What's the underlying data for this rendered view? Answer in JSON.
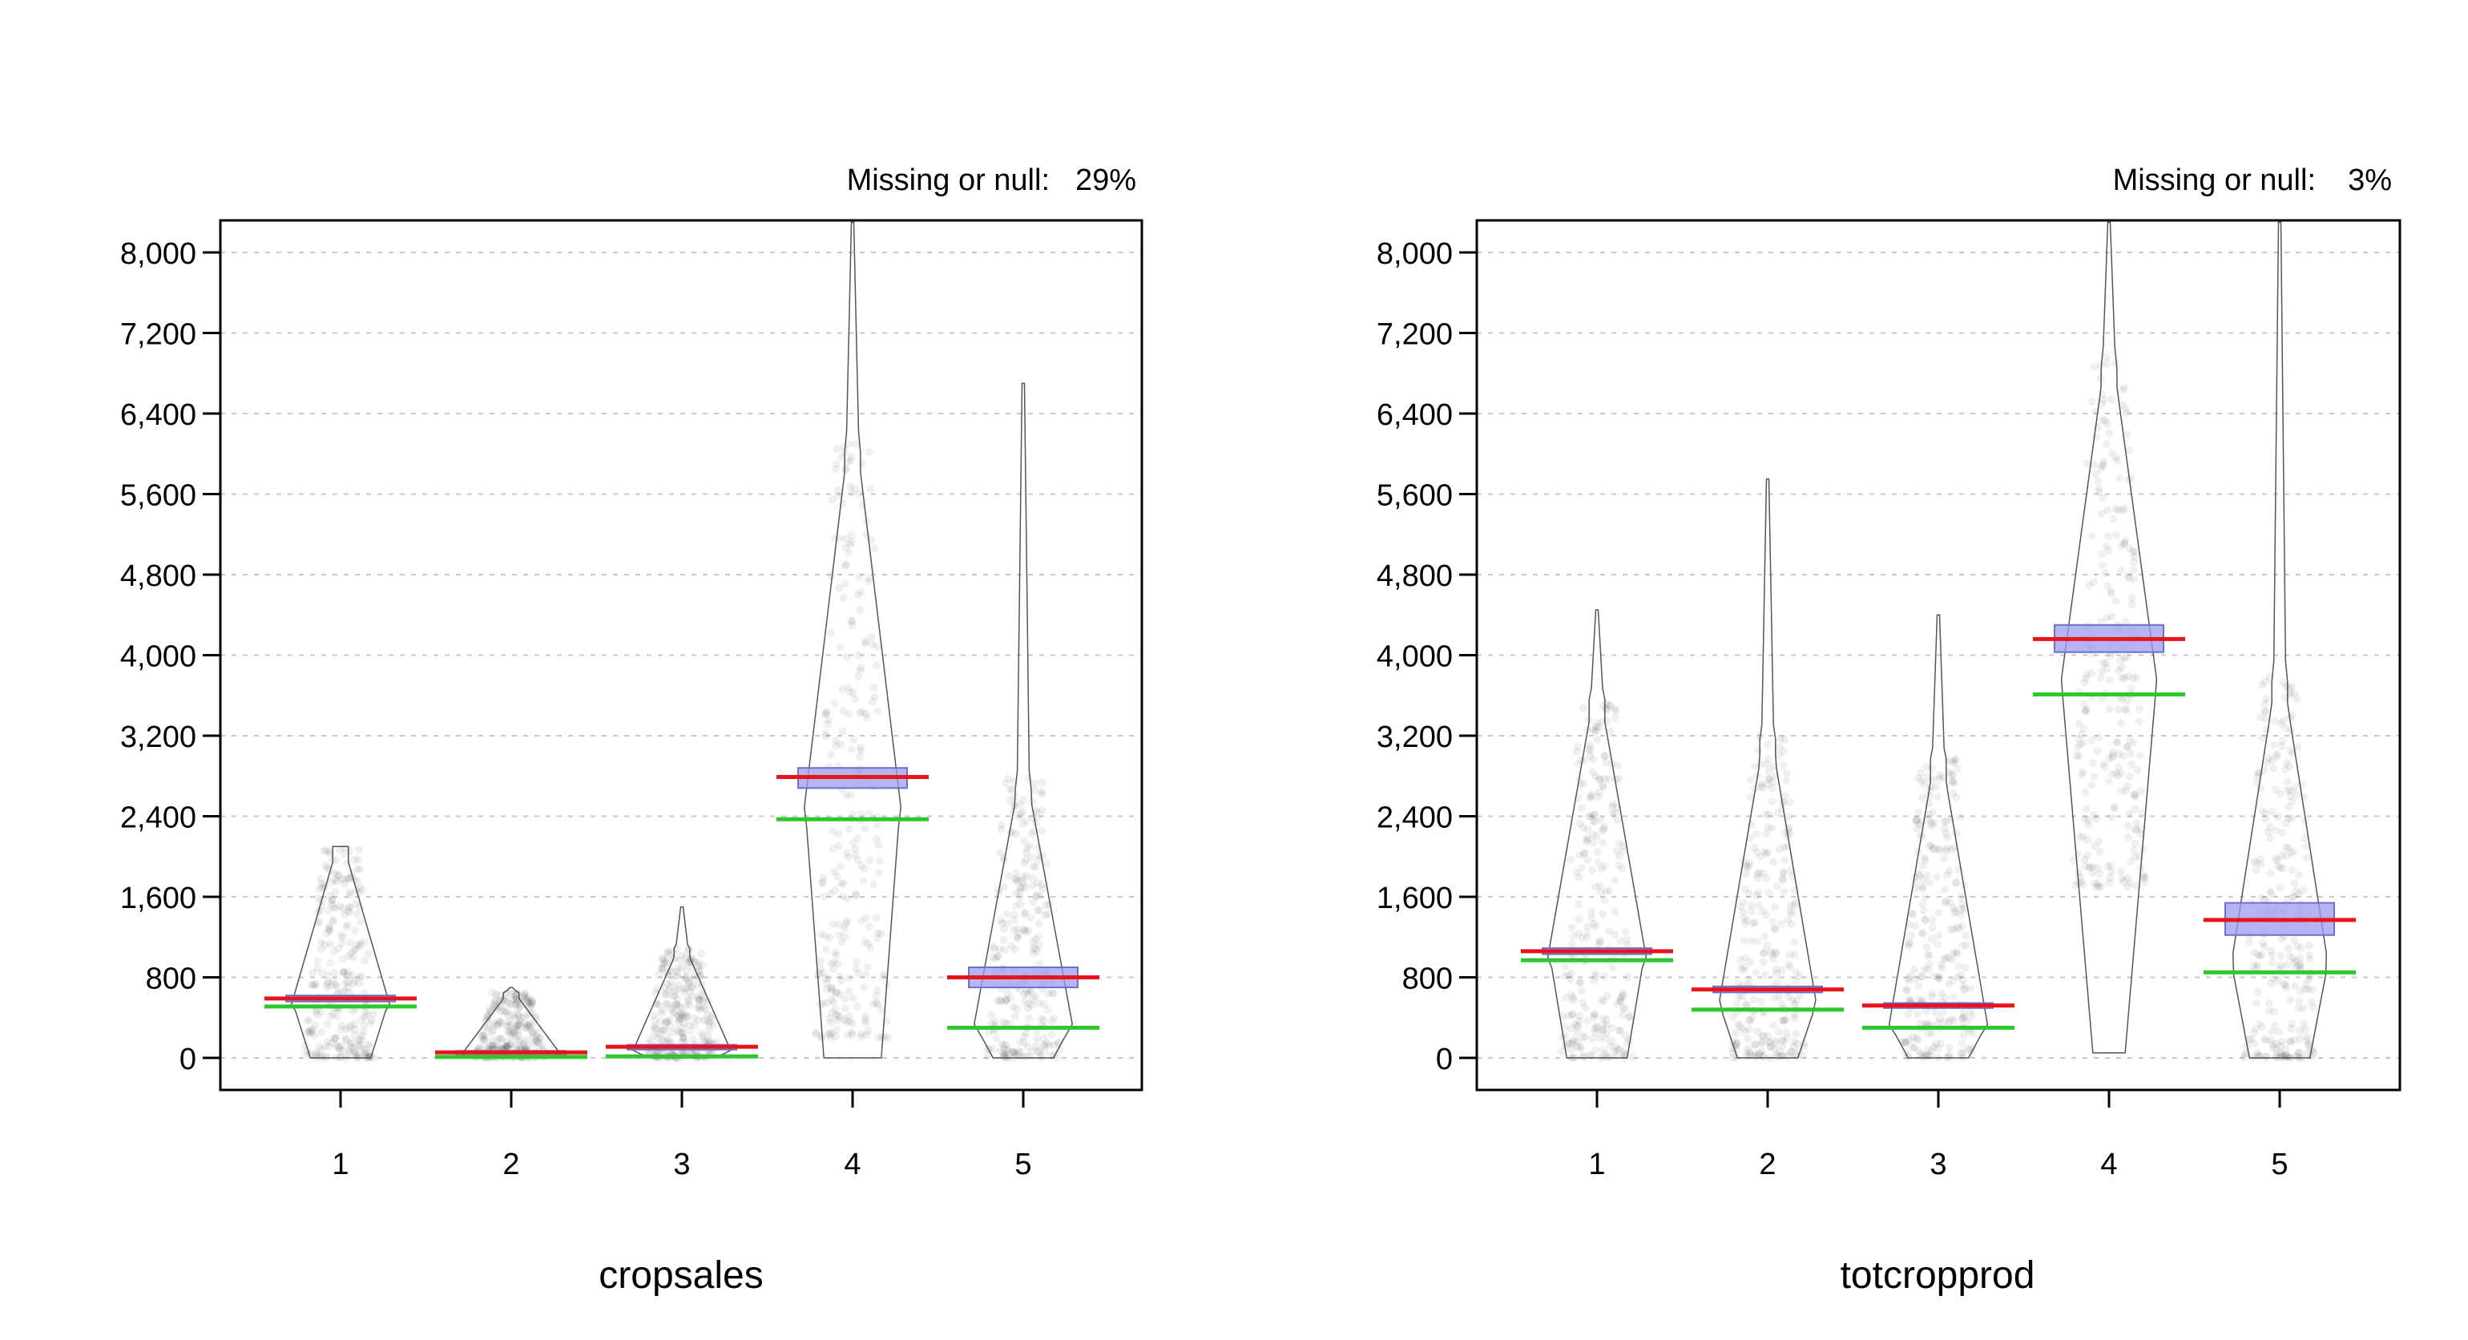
{
  "colors": {
    "mean_line": "#e8141b",
    "median_line": "#2ec82e",
    "ci_box": "#9c9cf0",
    "ci_box_border": "#6f6fcc",
    "points": "#000000",
    "grid": "#c8c8c8"
  },
  "chart_data": [
    {
      "type": "violin",
      "title": "",
      "xlabel": "cropsales",
      "ylabel": "",
      "missing_label": "Missing or null:",
      "missing_value": "29%",
      "ylim": [
        -400,
        8300
      ],
      "yticks": [
        0,
        800,
        1600,
        2400,
        3200,
        4000,
        4800,
        5600,
        6400,
        7200,
        8000
      ],
      "ytick_labels": [
        "0",
        "800",
        "1,600",
        "2,400",
        "3,200",
        "4,000",
        "4,800",
        "5,600",
        "6,400",
        "7,200",
        "8,000"
      ],
      "categories": [
        "1",
        "2",
        "3",
        "4",
        "5"
      ],
      "grid": true,
      "groups": [
        {
          "category": "1",
          "mean": 590,
          "median": 510,
          "ci": [
            560,
            620
          ],
          "min": 0,
          "max": 2100,
          "point_spread": [
            0,
            2100
          ]
        },
        {
          "category": "2",
          "mean": 55,
          "median": 10,
          "ci": [
            40,
            70
          ],
          "min": 0,
          "max": 700,
          "point_spread": [
            0,
            650
          ]
        },
        {
          "category": "3",
          "mean": 110,
          "median": 15,
          "ci": [
            90,
            130
          ],
          "min": 0,
          "max": 1500,
          "point_spread": [
            0,
            1100
          ]
        },
        {
          "category": "4",
          "mean": 2790,
          "median": 2370,
          "ci": [
            2680,
            2880
          ],
          "min": 0,
          "max": 8300,
          "point_spread": [
            200,
            6200
          ]
        },
        {
          "category": "5",
          "mean": 800,
          "median": 300,
          "ci": [
            700,
            900
          ],
          "min": 0,
          "max": 6700,
          "point_spread": [
            0,
            2800
          ]
        }
      ]
    },
    {
      "type": "violin",
      "title": "",
      "xlabel": "totcropprod",
      "ylabel": "",
      "missing_label": "Missing or null:",
      "missing_value": "3%",
      "ylim": [
        -400,
        8300
      ],
      "yticks": [
        0,
        800,
        1600,
        2400,
        3200,
        4000,
        4800,
        5600,
        6400,
        7200,
        8000
      ],
      "ytick_labels": [
        "0",
        "800",
        "1,600",
        "2,400",
        "3,200",
        "4,000",
        "4,800",
        "5,600",
        "6,400",
        "7,200",
        "8,000"
      ],
      "categories": [
        "1",
        "2",
        "3",
        "4",
        "5"
      ],
      "grid": true,
      "groups": [
        {
          "category": "1",
          "mean": 1060,
          "median": 970,
          "ci": [
            1030,
            1090
          ],
          "min": 0,
          "max": 4450,
          "point_spread": [
            0,
            3600
          ]
        },
        {
          "category": "2",
          "mean": 680,
          "median": 480,
          "ci": [
            650,
            710
          ],
          "min": 0,
          "max": 5750,
          "point_spread": [
            0,
            3200
          ]
        },
        {
          "category": "3",
          "mean": 520,
          "median": 300,
          "ci": [
            495,
            545
          ],
          "min": 0,
          "max": 4400,
          "point_spread": [
            0,
            3000
          ]
        },
        {
          "category": "4",
          "mean": 4160,
          "median": 3610,
          "ci": [
            4030,
            4300
          ],
          "min": 50,
          "max": 8300,
          "point_spread": [
            1700,
            7000
          ]
        },
        {
          "category": "5",
          "mean": 1370,
          "median": 850,
          "ci": [
            1220,
            1540
          ],
          "min": 0,
          "max": 8300,
          "point_spread": [
            0,
            3800
          ]
        }
      ]
    }
  ]
}
